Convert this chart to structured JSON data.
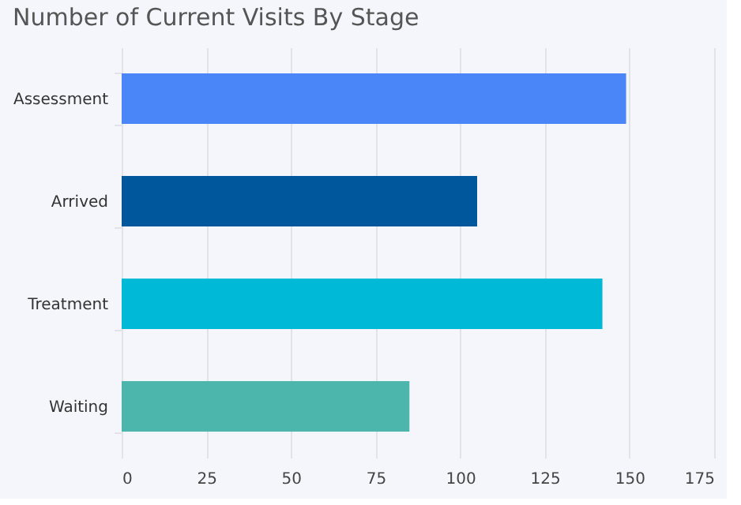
{
  "chart_data": {
    "type": "bar",
    "orientation": "horizontal",
    "title": "Number of Current Visits By Stage",
    "categories": [
      "Assessment",
      "Arrived",
      "Treatment",
      "Waiting"
    ],
    "values": [
      149,
      105,
      142,
      85
    ],
    "colors": [
      "#4a86f7",
      "#00579c",
      "#00b9d6",
      "#4db6ac"
    ],
    "xlim": [
      0,
      175
    ],
    "xticks": [
      0,
      25,
      50,
      75,
      100,
      125,
      150,
      175
    ],
    "grid": "x"
  }
}
